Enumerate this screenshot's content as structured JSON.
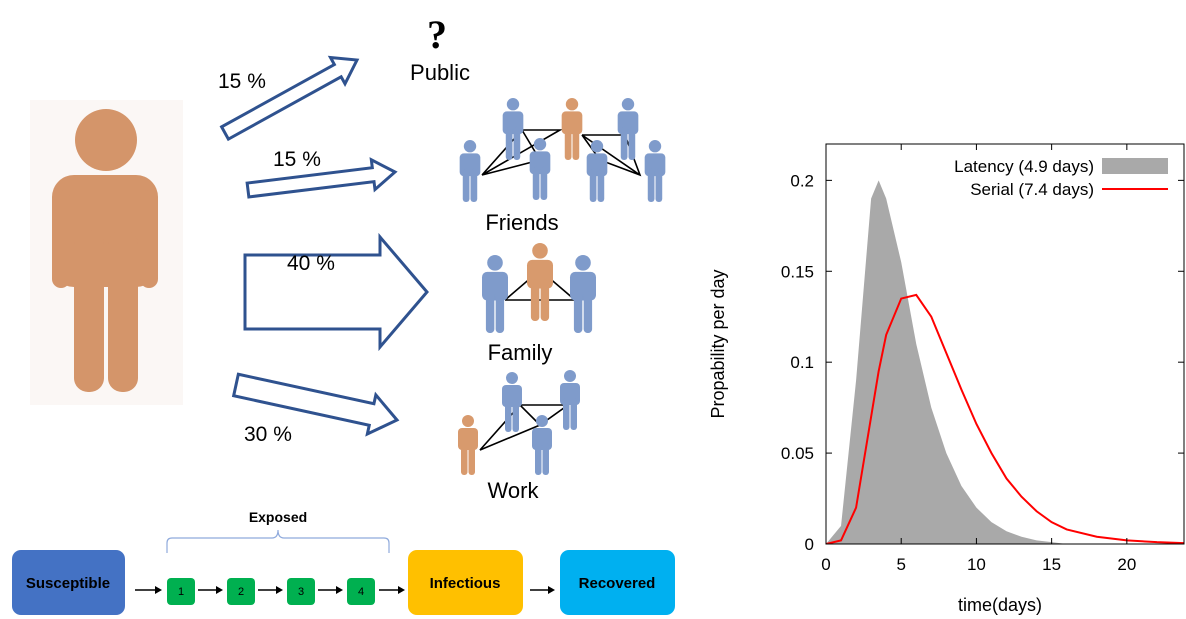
{
  "diagram": {
    "public_mark": "?",
    "destinations": [
      {
        "label": "Public",
        "percent": "15 %"
      },
      {
        "label": "Friends",
        "percent": "15 %"
      },
      {
        "label": "Family",
        "percent": "40 %"
      },
      {
        "label": "Work",
        "percent": "30 %"
      }
    ],
    "exposed_label": "Exposed",
    "stages": [
      "Susceptible",
      "1",
      "2",
      "3",
      "4",
      "Infectious",
      "Recovered"
    ]
  },
  "chart_data": {
    "type": "line",
    "xlabel": "time(days)",
    "ylabel": "Propability per day",
    "xlim": [
      0,
      23.8
    ],
    "ylim": [
      0,
      0.22
    ],
    "xticks": [
      0,
      5,
      10,
      15,
      20
    ],
    "yticks": [
      0,
      0.05,
      0.1,
      0.15,
      0.2
    ],
    "legend": "upper right",
    "x": [
      0,
      1,
      2,
      3,
      3.5,
      4,
      5,
      6,
      7,
      8,
      9,
      10,
      11,
      12,
      13,
      14,
      15,
      16,
      18,
      20,
      22,
      23.8
    ],
    "series": [
      {
        "name": "Latency (4.9 days)",
        "color": "#a9a9a9",
        "fill": true,
        "values": [
          0,
          0.01,
          0.09,
          0.19,
          0.2,
          0.19,
          0.155,
          0.11,
          0.075,
          0.05,
          0.032,
          0.02,
          0.012,
          0.007,
          0.004,
          0.002,
          0.001,
          0,
          0,
          0,
          0,
          0
        ]
      },
      {
        "name": "Serial (7.4 days)",
        "color": "#ff0000",
        "fill": false,
        "values": [
          0,
          0.002,
          0.02,
          0.07,
          0.095,
          0.115,
          0.135,
          0.137,
          0.125,
          0.105,
          0.085,
          0.066,
          0.05,
          0.036,
          0.026,
          0.018,
          0.012,
          0.008,
          0.004,
          0.002,
          0.001,
          0.0005
        ]
      }
    ]
  }
}
